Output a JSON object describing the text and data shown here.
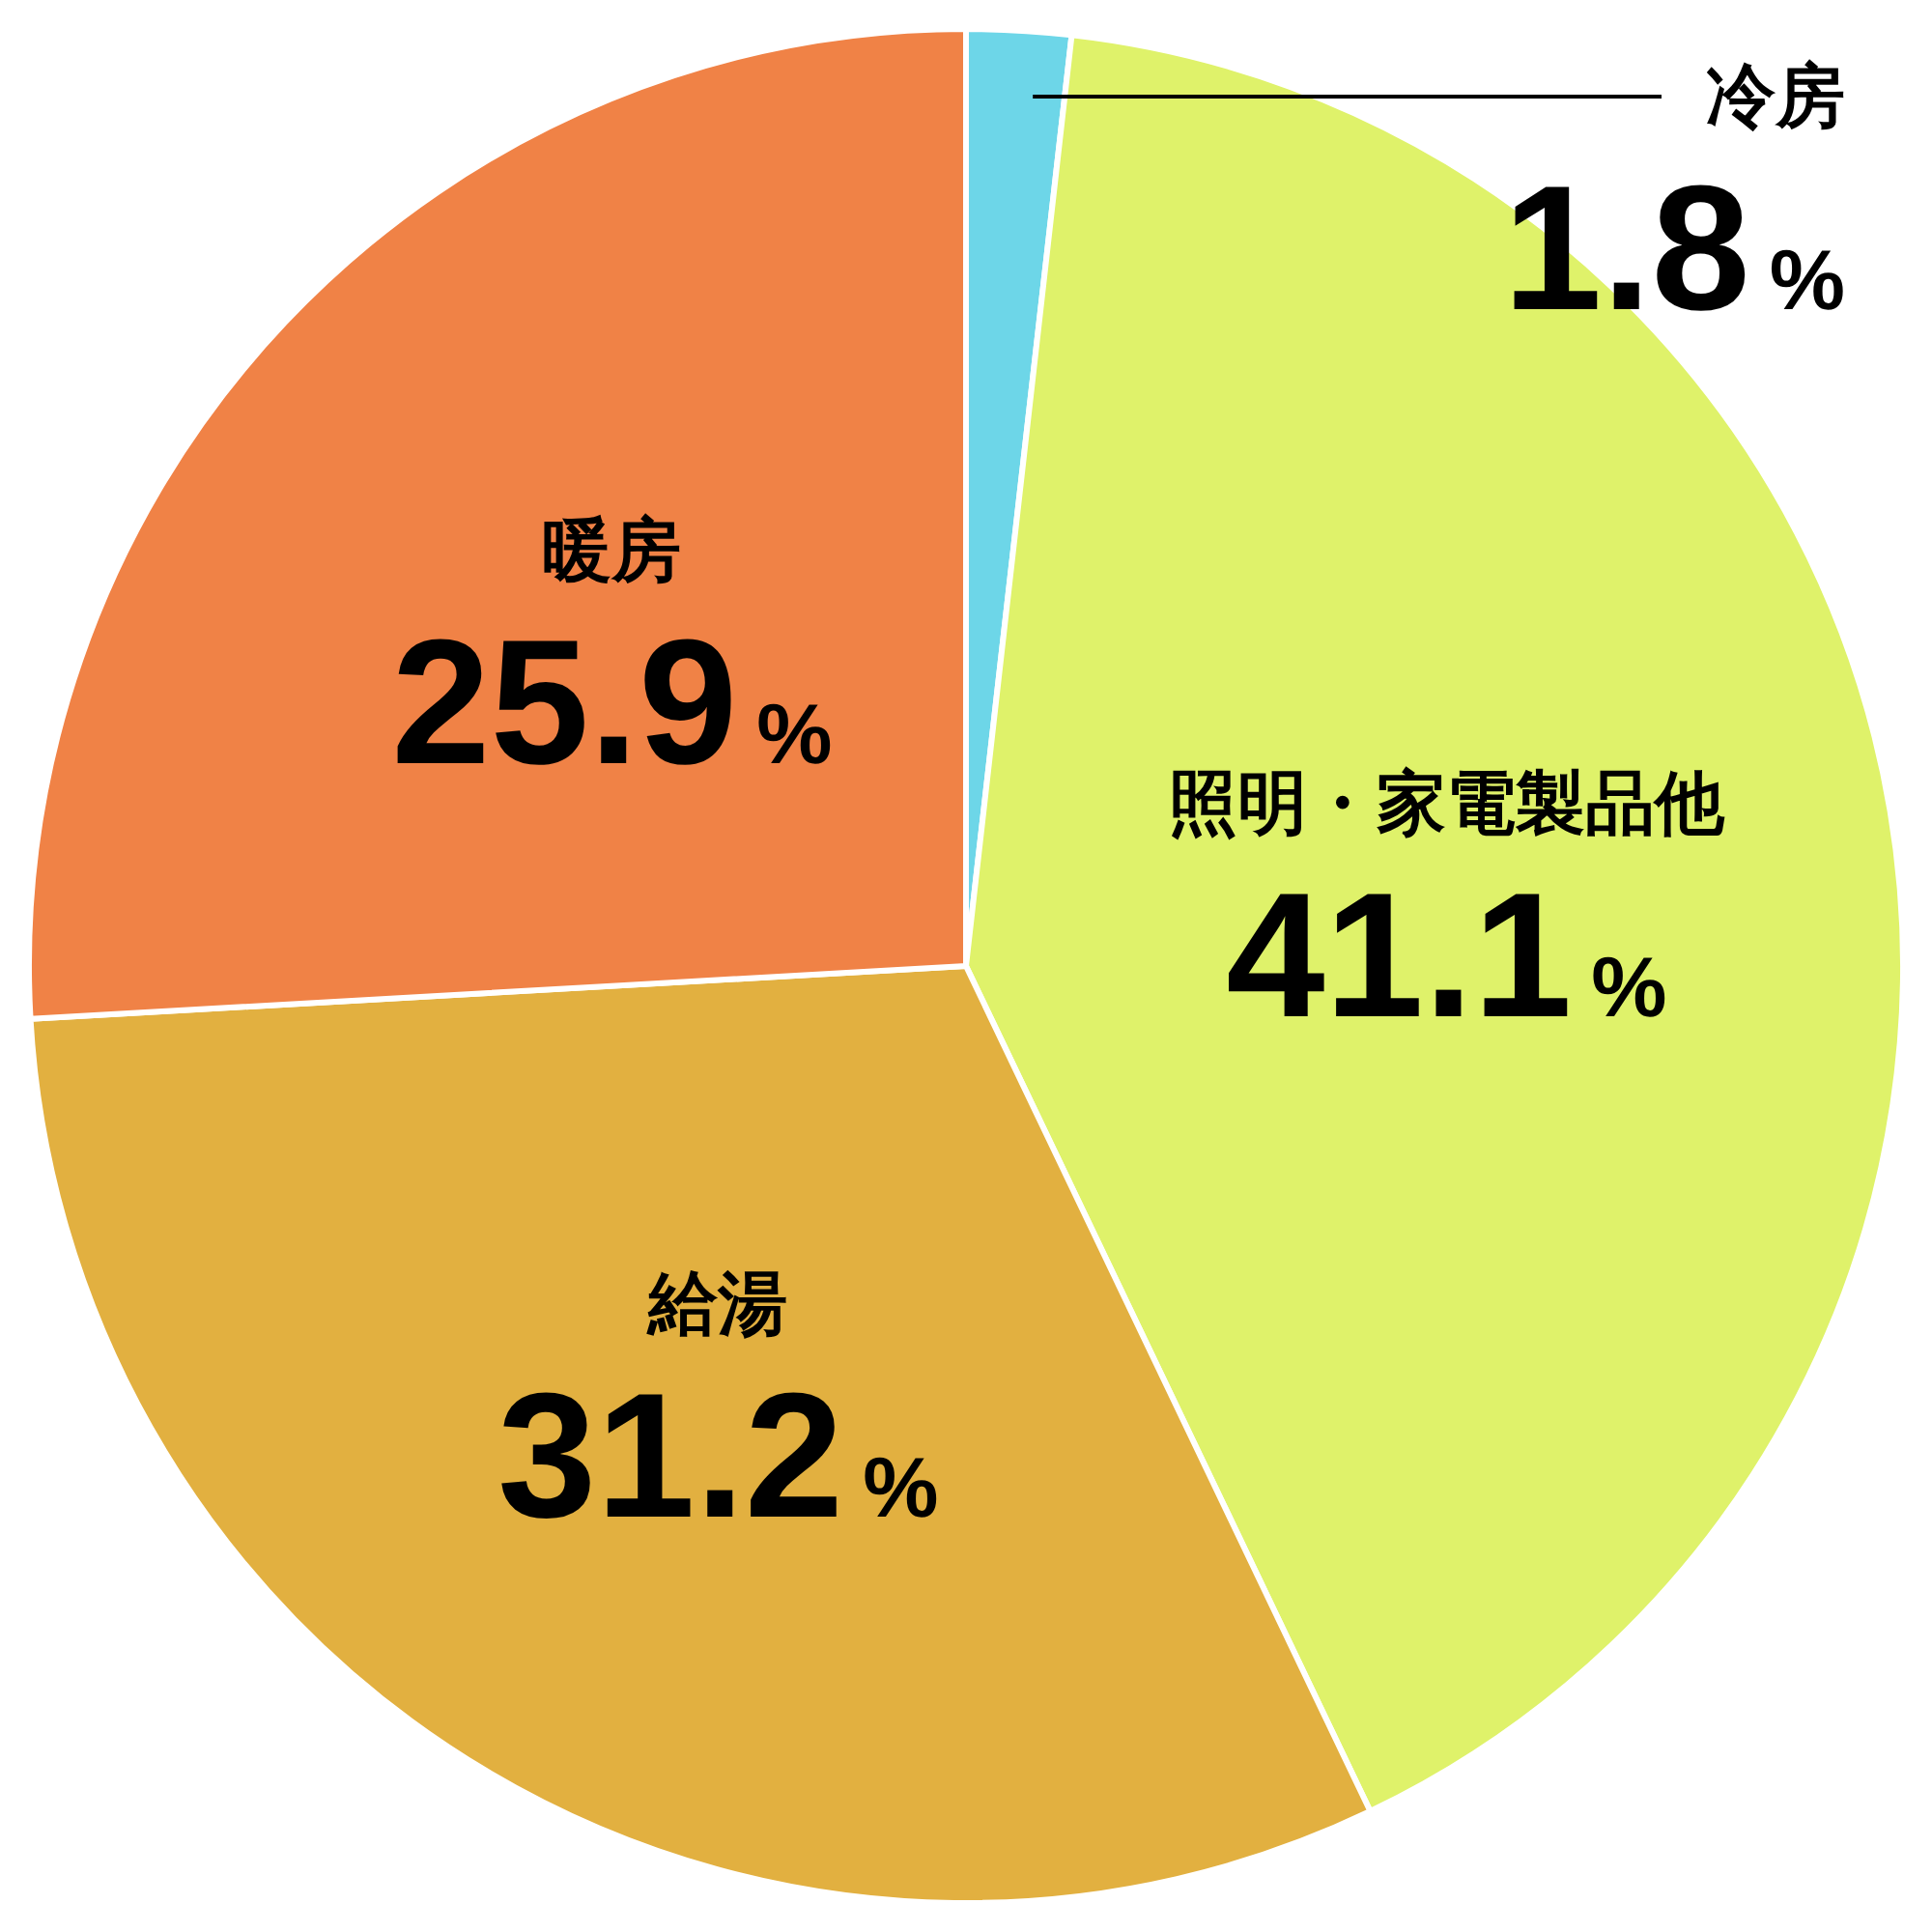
{
  "chart_data": {
    "type": "pie",
    "categories": [
      "冷房",
      "照明・家電製品他",
      "給湯",
      "暖房"
    ],
    "values": [
      1.8,
      41.1,
      31.2,
      25.9
    ],
    "value_labels": [
      "1.8%",
      "41.1%",
      "31.2%",
      "25.9%"
    ],
    "colors": [
      "#6dd6e8",
      "#dff26a",
      "#e2b040",
      "#f08246"
    ]
  }
}
